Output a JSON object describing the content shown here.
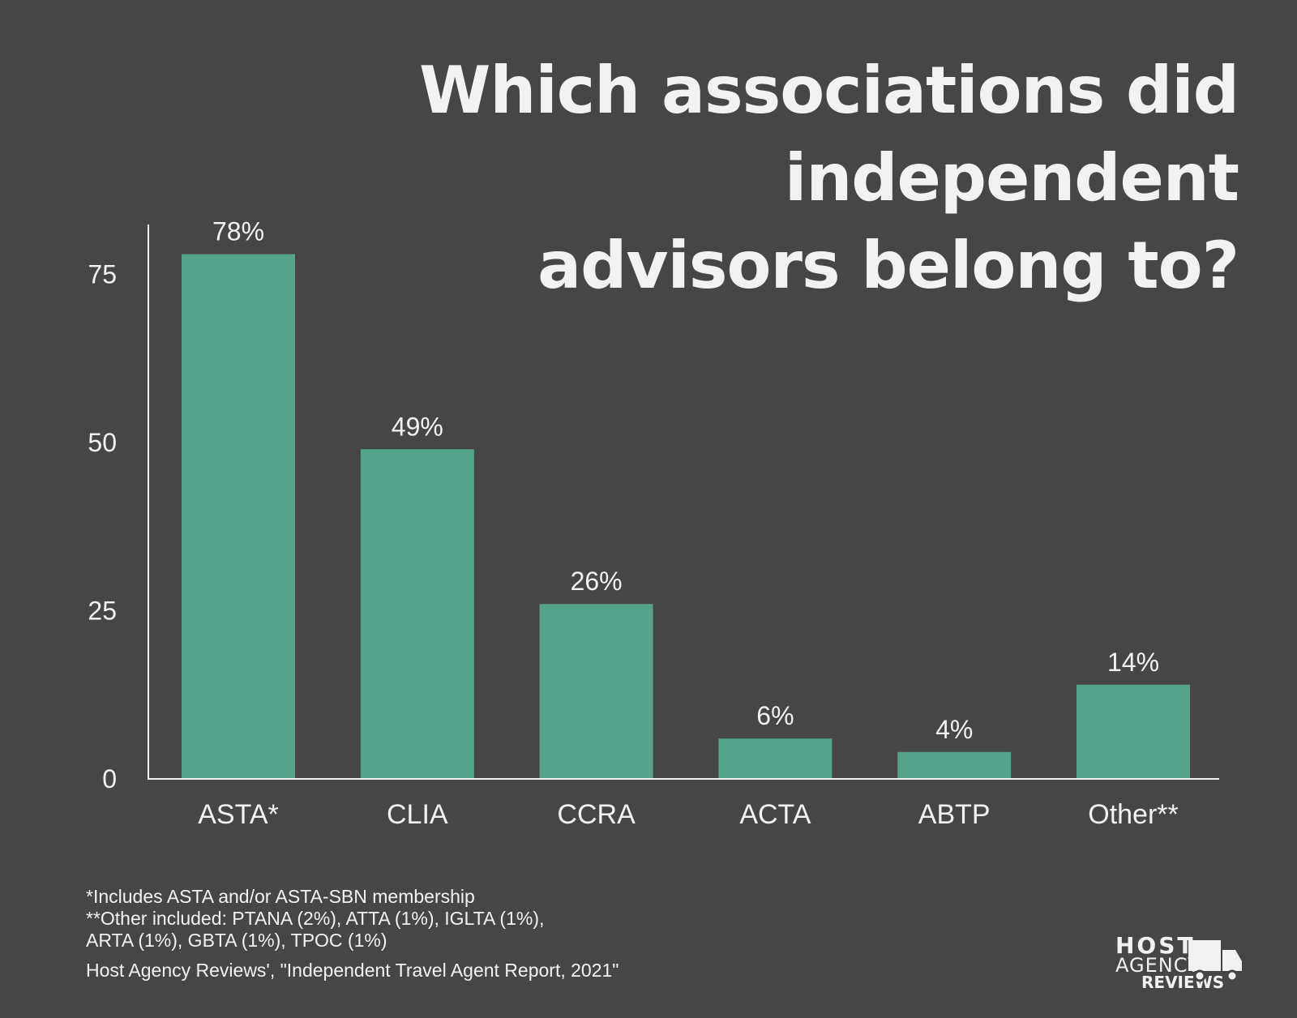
{
  "title": {
    "line1": "Which associations did independent",
    "line2": "advisors belong to?"
  },
  "colors": {
    "background": "#464646",
    "bar": "#53a48a",
    "text": "#f2f2f2",
    "axis": "#f2f2f2"
  },
  "chart_data": {
    "type": "bar",
    "categories": [
      "ASTA*",
      "CLIA",
      "CCRA",
      "ACTA",
      "ABTP",
      "Other**"
    ],
    "values": [
      78,
      49,
      26,
      6,
      4,
      14
    ],
    "value_labels": [
      "78%",
      "49%",
      "26%",
      "6%",
      "4%",
      "14%"
    ],
    "yticks": [
      0,
      25,
      50,
      75
    ],
    "ylim": [
      0,
      78
    ],
    "grid": false,
    "legend": "none"
  },
  "footnotes": {
    "line1": "*Includes ASTA and/or ASTA-SBN membership",
    "line2": "**Other included: PTANA (2%), ATTA (1%), IGLTA (1%),",
    "line3": "ARTA (1%), GBTA (1%), TPOC (1%)",
    "source": "Host Agency Reviews', \"Independent Travel Agent Report, 2021\""
  },
  "logo": {
    "line1": "HOST",
    "line2": "AGENCY",
    "line3": "REVIEWS",
    "icon": "truck-icon"
  }
}
